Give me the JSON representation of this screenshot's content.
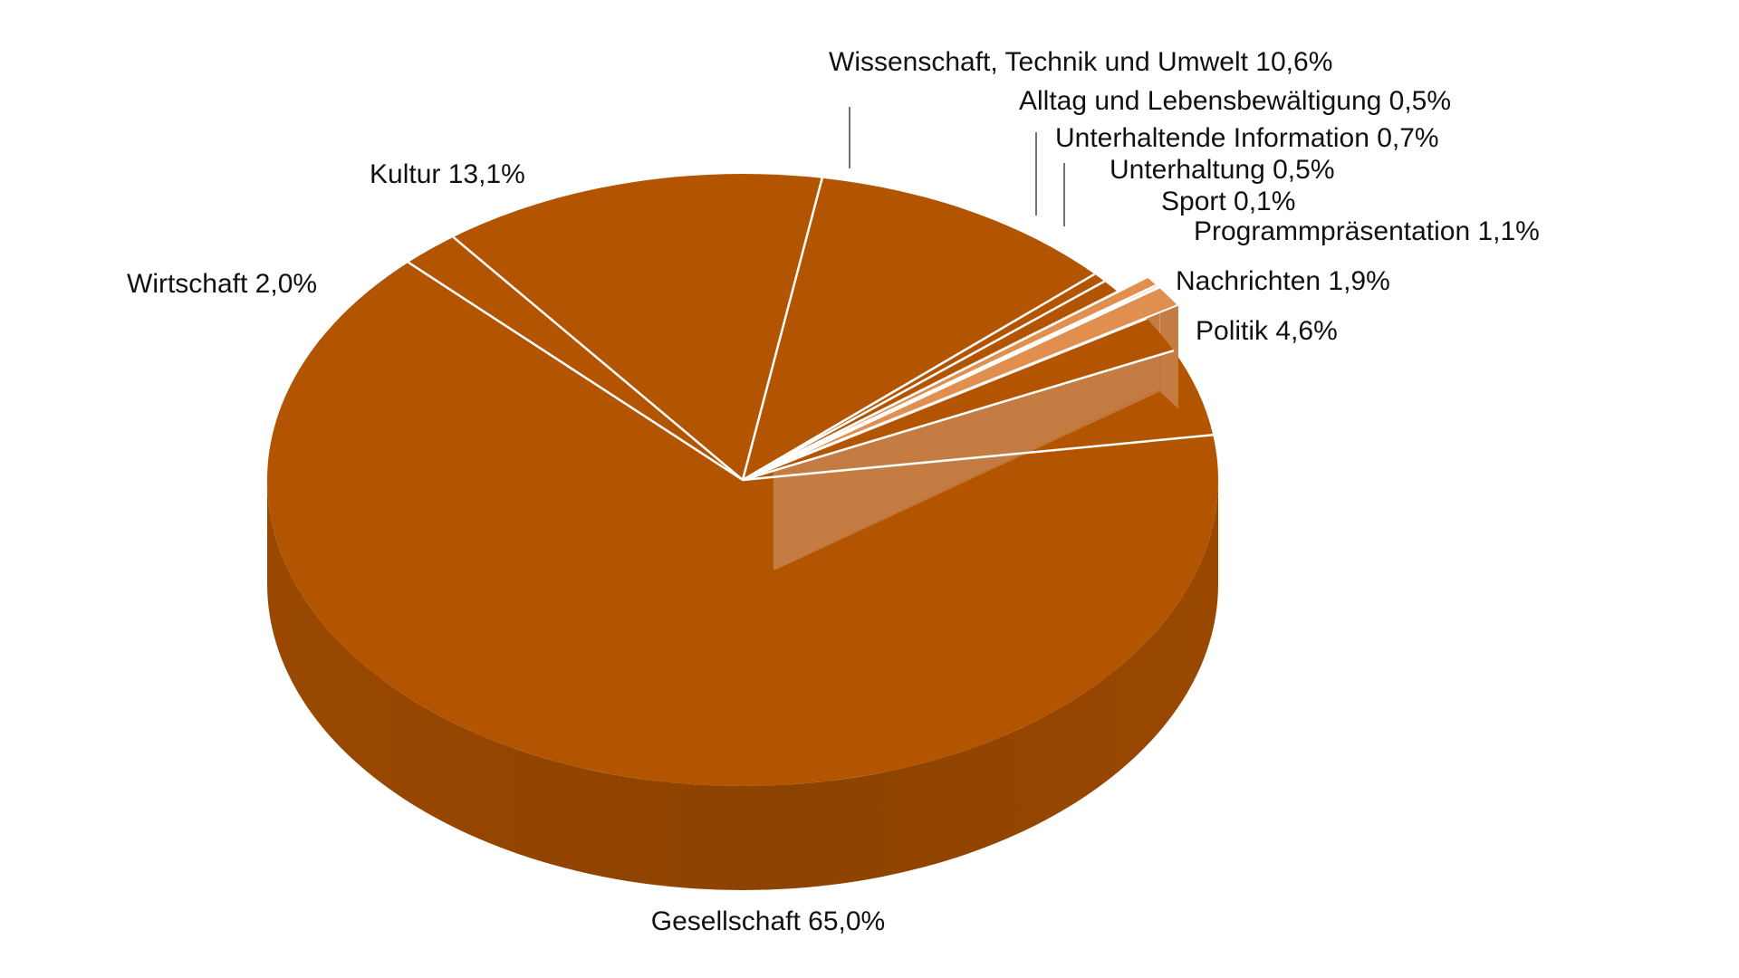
{
  "chart_data": {
    "type": "pie",
    "style": "3d",
    "title": "",
    "grid": false,
    "legend": "none",
    "labels_position": "outside",
    "slices": [
      {
        "name": "Politik",
        "value": 4.6,
        "label": "Politik 4,6%",
        "color": "#b35500",
        "exploded": false
      },
      {
        "name": "Gesellschaft",
        "value": 65.0,
        "label": "Gesellschaft 65,0%",
        "color": "#b35500",
        "exploded": false
      },
      {
        "name": "Wirtschaft",
        "value": 2.0,
        "label": "Wirtschaft 2,0%",
        "color": "#b35500",
        "exploded": false
      },
      {
        "name": "Kultur",
        "value": 13.1,
        "label": "Kultur 13,1%",
        "color": "#b35500",
        "exploded": false
      },
      {
        "name": "Wissenschaft, Technik und Umwelt",
        "value": 10.6,
        "label": "Wissenschaft, Technik und Umwelt 10,6%",
        "color": "#b35500",
        "exploded": false
      },
      {
        "name": "Alltag und Lebensbewältigung",
        "value": 0.5,
        "label": "Alltag und Lebensbewältigung 0,5%",
        "color": "#b35500",
        "exploded": false
      },
      {
        "name": "Unterhaltende Information",
        "value": 0.7,
        "label": "Unterhaltende Information 0,7%",
        "color": "#b35500",
        "exploded": false
      },
      {
        "name": "Unterhaltung",
        "value": 0.5,
        "label": "Unterhaltung 0,5%",
        "color": "#e08f4f",
        "exploded": true
      },
      {
        "name": "Sport",
        "value": 0.1,
        "label": "Sport 0,1%",
        "color": "#e08f4f",
        "exploded": true
      },
      {
        "name": "Programmpräsentation",
        "value": 1.1,
        "label": "Programmpräsentation 1,1%",
        "color": "#e08f4f",
        "exploded": true
      },
      {
        "name": "Nachrichten",
        "value": 1.9,
        "label": "Nachrichten 1,9%",
        "color": "#b35500",
        "exploded": false
      }
    ],
    "colors": {
      "top": "#b35500",
      "side": "#9a4800",
      "highlight_top": "#e08f4f",
      "highlight_side": "#c47c43",
      "separator": "#ffffff",
      "text": "#111111"
    }
  }
}
